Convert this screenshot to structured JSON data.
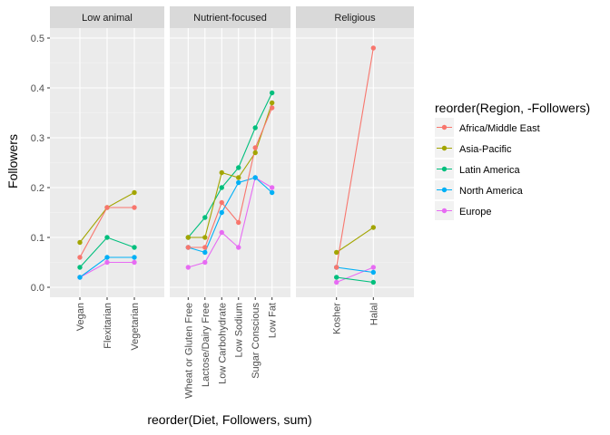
{
  "chart_data": {
    "type": "line",
    "xlabel": "reorder(Diet, Followers, sum)",
    "ylabel": "Followers",
    "ylim": [
      -0.02,
      0.52
    ],
    "yticks": [
      "0.0",
      "0.1",
      "0.2",
      "0.3",
      "0.4",
      "0.5"
    ],
    "grid": true,
    "legend": {
      "title": "reorder(Region, -Followers)",
      "placement": "right"
    },
    "colors": {
      "Africa/Middle East": "#f8766d",
      "Asia-Pacific": "#a3a500",
      "Latin America": "#00bf7d",
      "North America": "#00b0f6",
      "Europe": "#e76bf3"
    },
    "panels": [
      {
        "facet": "Low animal",
        "categories": [
          "Vegan",
          "Flexitarian",
          "Vegetarian"
        ],
        "series": [
          {
            "name": "Africa/Middle East",
            "values": [
              0.06,
              0.16,
              0.16
            ]
          },
          {
            "name": "Asia-Pacific",
            "values": [
              0.09,
              0.16,
              0.19
            ]
          },
          {
            "name": "Latin America",
            "values": [
              0.04,
              0.1,
              0.08
            ]
          },
          {
            "name": "North America",
            "values": [
              0.02,
              0.06,
              0.06
            ]
          },
          {
            "name": "Europe",
            "values": [
              0.02,
              0.05,
              0.05
            ]
          }
        ]
      },
      {
        "facet": "Nutrient-focused",
        "categories": [
          "Wheat or Gluten Free",
          "Lactose/Dairy Free",
          "Low Carbohydrate",
          "Low Sodium",
          "Sugar Conscious",
          "Low Fat"
        ],
        "series": [
          {
            "name": "Africa/Middle East",
            "values": [
              0.08,
              0.08,
              0.17,
              0.13,
              0.28,
              0.36
            ]
          },
          {
            "name": "Asia-Pacific",
            "values": [
              0.1,
              0.1,
              0.23,
              0.22,
              0.27,
              0.37
            ]
          },
          {
            "name": "Latin America",
            "values": [
              0.1,
              0.14,
              0.2,
              0.24,
              0.32,
              0.39
            ]
          },
          {
            "name": "North America",
            "values": [
              0.08,
              0.07,
              0.15,
              0.21,
              0.22,
              0.19
            ]
          },
          {
            "name": "Europe",
            "values": [
              0.04,
              0.05,
              0.11,
              0.08,
              0.22,
              0.2
            ]
          }
        ]
      },
      {
        "facet": "Religious",
        "categories": [
          "Kosher",
          "Halal"
        ],
        "series": [
          {
            "name": "Africa/Middle East",
            "values": [
              0.04,
              0.48
            ]
          },
          {
            "name": "Asia-Pacific",
            "values": [
              0.07,
              0.12
            ]
          },
          {
            "name": "Latin America",
            "values": [
              0.02,
              0.01
            ]
          },
          {
            "name": "North America",
            "values": [
              0.04,
              0.03
            ]
          },
          {
            "name": "Europe",
            "values": [
              0.01,
              0.04
            ]
          }
        ]
      }
    ]
  }
}
